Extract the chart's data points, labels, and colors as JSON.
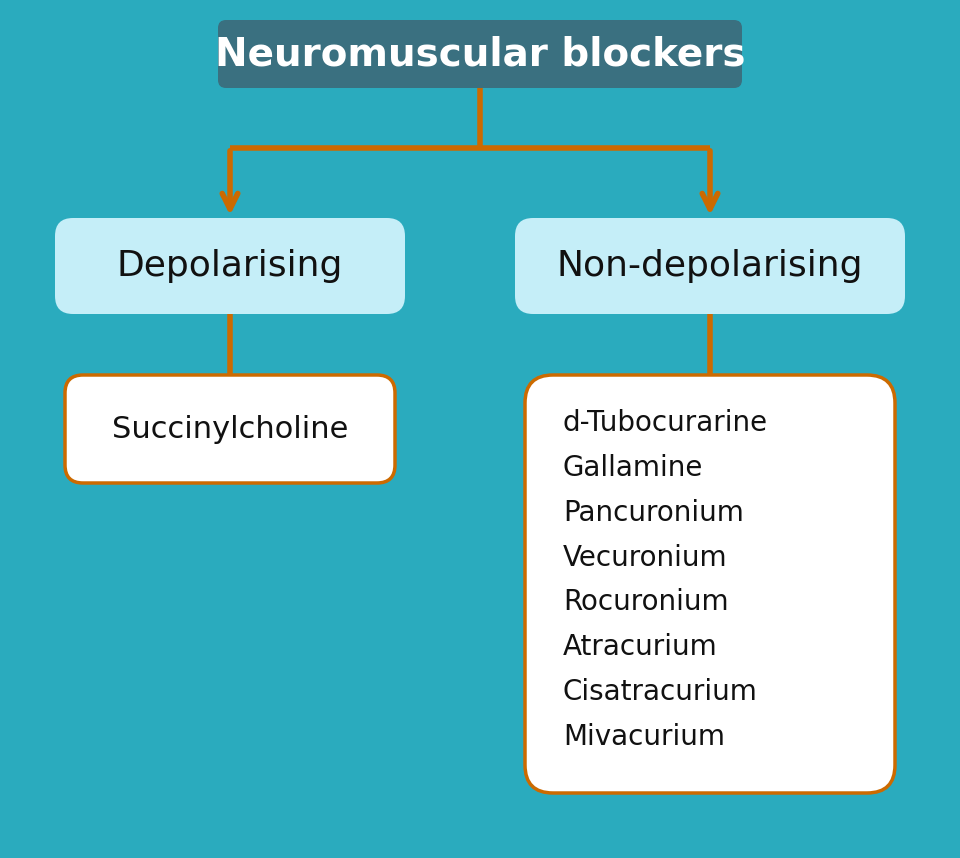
{
  "background_color": "#2AABBE",
  "title_text": "Neuromuscular blockers",
  "title_box_color": "#3A7080",
  "title_text_color": "#FFFFFF",
  "arrow_color": "#CC6A00",
  "depol_box_color": "#C5EEF8",
  "depol_text": "Depolarising",
  "depol_text_color": "#111111",
  "nondepol_box_color": "#C5EEF8",
  "nondepol_text": "Non-depolarising",
  "nondepol_text_color": "#111111",
  "succinyl_box_color": "#FFFFFF",
  "succinyl_text": "Succinylcholine",
  "succinyl_text_color": "#111111",
  "nondepol_drugs_box_color": "#FFFFFF",
  "nondepol_drugs": [
    "d-Tubocurarine",
    "Gallamine",
    "Pancuronium",
    "Vecuronium",
    "Rocuronium",
    "Atracurium",
    "Cisatracurium",
    "Mivacurium"
  ],
  "nondepol_drugs_text_color": "#111111",
  "border_color": "#CC6A00",
  "border_linewidth": 2.5,
  "fig_width": 9.6,
  "fig_height": 8.58,
  "dpi": 100
}
